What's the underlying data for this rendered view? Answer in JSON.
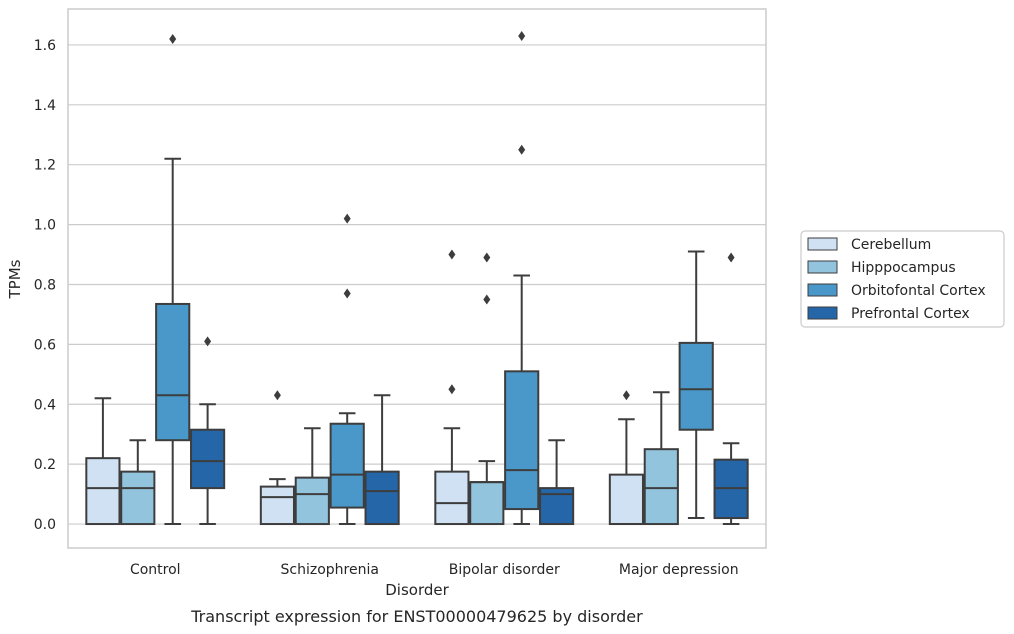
{
  "chart_data": {
    "type": "box",
    "title": "",
    "caption": "Transcript expression for ENST00000479625 by disorder",
    "xlabel": "Disorder",
    "ylabel": "TPMs",
    "ylim": [
      -0.08,
      1.72
    ],
    "yticks": [
      "0.0",
      "0.2",
      "0.4",
      "0.6",
      "0.8",
      "1.0",
      "1.2",
      "1.4",
      "1.6"
    ],
    "grid": "horizontal",
    "legend_position": "right",
    "categories": [
      "Control",
      "Schizophrenia",
      "Bipolar disorder",
      "Major depression"
    ],
    "series": [
      {
        "name": "Cerebellum",
        "color": "#cfe1f2",
        "boxes": [
          {
            "min": 0.0,
            "q1": 0.0,
            "median": 0.12,
            "q3": 0.22,
            "max": 0.42,
            "outliers": []
          },
          {
            "min": 0.0,
            "q1": 0.0,
            "median": 0.09,
            "q3": 0.125,
            "max": 0.15,
            "outliers": [
              0.43
            ]
          },
          {
            "min": 0.0,
            "q1": 0.0,
            "median": 0.07,
            "q3": 0.175,
            "max": 0.32,
            "outliers": [
              0.45,
              0.9
            ]
          },
          {
            "min": 0.0,
            "q1": 0.0,
            "median": 0.0,
            "q3": 0.165,
            "max": 0.35,
            "outliers": [
              0.43
            ]
          }
        ]
      },
      {
        "name": "Hipppocampus",
        "color": "#93c4de",
        "boxes": [
          {
            "min": 0.0,
            "q1": 0.0,
            "median": 0.12,
            "q3": 0.175,
            "max": 0.28,
            "outliers": []
          },
          {
            "min": 0.0,
            "q1": 0.0,
            "median": 0.1,
            "q3": 0.155,
            "max": 0.32,
            "outliers": []
          },
          {
            "min": 0.0,
            "q1": 0.0,
            "median": 0.14,
            "q3": 0.14,
            "max": 0.21,
            "outliers": [
              0.75,
              0.89
            ]
          },
          {
            "min": 0.0,
            "q1": 0.0,
            "median": 0.12,
            "q3": 0.25,
            "max": 0.44,
            "outliers": []
          }
        ]
      },
      {
        "name": "Orbitofontal Cortex",
        "color": "#4a98c9",
        "boxes": [
          {
            "min": 0.0,
            "q1": 0.28,
            "median": 0.43,
            "q3": 0.735,
            "max": 1.22,
            "outliers": [
              1.62
            ]
          },
          {
            "min": 0.0,
            "q1": 0.055,
            "median": 0.165,
            "q3": 0.335,
            "max": 0.37,
            "outliers": [
              0.77,
              1.02
            ]
          },
          {
            "min": 0.0,
            "q1": 0.05,
            "median": 0.18,
            "q3": 0.51,
            "max": 0.83,
            "outliers": [
              1.25,
              1.63
            ]
          },
          {
            "min": 0.02,
            "q1": 0.315,
            "median": 0.45,
            "q3": 0.605,
            "max": 0.91,
            "outliers": []
          }
        ]
      },
      {
        "name": "Prefrontal Cortex",
        "color": "#2566a8",
        "boxes": [
          {
            "min": 0.0,
            "q1": 0.12,
            "median": 0.21,
            "q3": 0.315,
            "max": 0.4,
            "outliers": [
              0.61
            ]
          },
          {
            "min": 0.0,
            "q1": 0.0,
            "median": 0.11,
            "q3": 0.175,
            "max": 0.43,
            "outliers": []
          },
          {
            "min": 0.0,
            "q1": 0.0,
            "median": 0.1,
            "q3": 0.12,
            "max": 0.28,
            "outliers": []
          },
          {
            "min": 0.0,
            "q1": 0.02,
            "median": 0.12,
            "q3": 0.215,
            "max": 0.27,
            "outliers": [
              0.89
            ]
          }
        ]
      }
    ]
  }
}
